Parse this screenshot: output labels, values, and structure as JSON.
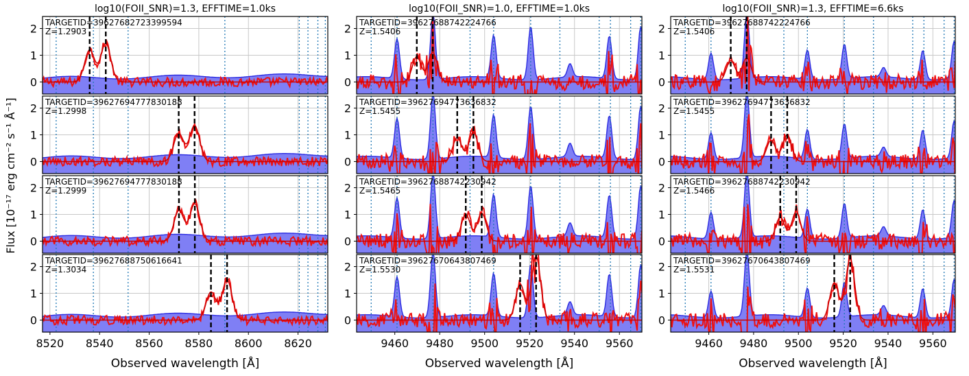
{
  "figure": {
    "ylabel": "Flux [10⁻¹⁷ erg cm⁻² s⁻¹ Å⁻¹]",
    "xlabel": "Observed wavelength [Å]",
    "colors": {
      "model": "#cc0000",
      "data": "#ee1111",
      "sky_fill": "#7f7ff5",
      "sky_line": "#2a2ae0",
      "skyline_marker": "#1f77b4",
      "oii_marker": "#000000",
      "grid": "#c8c8c8"
    }
  },
  "chart_data": [
    {
      "type": "line",
      "title": "log10(FOII_SNR)=1.3, EFFTIME=1.0ks",
      "xlabel": "Observed wavelength [Å]",
      "xlim": [
        8517,
        8632
      ],
      "xticks": [
        8520,
        8540,
        8560,
        8580,
        8600,
        8620
      ],
      "sky_lines": [
        8522.5,
        8537.5,
        8551.5,
        8590.5,
        8620.5,
        8624,
        8628,
        8631
      ],
      "ylim": [
        -0.45,
        2.45
      ],
      "yticks": [
        0,
        1,
        2
      ],
      "panels": [
        {
          "targetid": "TARGETID=39627682723399594",
          "z": "Z=1.2903",
          "oii_lines": [
            8536.0,
            8542.5
          ],
          "peaks": [
            [
              8536.0,
              1.2
            ],
            [
              8542.5,
              1.45
            ]
          ]
        },
        {
          "targetid": "TARGETID=39627694777830188",
          "z": "Z=1.2998",
          "oii_lines": [
            8571.9,
            8578.3
          ],
          "peaks": [
            [
              8571.9,
              1.05
            ],
            [
              8578.3,
              1.35
            ]
          ]
        },
        {
          "targetid": "TARGETID=39627694777830188",
          "z": "Z=1.2999",
          "oii_lines": [
            8572.0,
            8578.4
          ],
          "peaks": [
            [
              8572.0,
              1.15
            ],
            [
              8578.4,
              1.4
            ]
          ]
        },
        {
          "targetid": "TARGETID=39627688750616641",
          "z": "Z=1.3034",
          "oii_lines": [
            8584.9,
            8591.4
          ],
          "peaks": [
            [
              8584.9,
              1.05
            ],
            [
              8591.4,
              1.5
            ]
          ]
        }
      ]
    },
    {
      "type": "line",
      "title": "log10(FOII_SNR)=1.0, EFFTIME=1.0ks",
      "xlabel": "Observed wavelength [Å]",
      "xlim": [
        9443,
        9570
      ],
      "xticks": [
        9460,
        9480,
        9500,
        9520,
        9540,
        9560
      ],
      "sky_lines": [
        9449.5,
        9461,
        9477,
        9493.5,
        9504,
        9520.5,
        9533.5,
        9551,
        9556,
        9565,
        9569.5
      ],
      "sky_emission": [
        [
          9461,
          1.5
        ],
        [
          9477,
          2.45
        ],
        [
          9504,
          1.6
        ],
        [
          9520.5,
          2.0
        ],
        [
          9538,
          0.5
        ],
        [
          9555.5,
          1.6
        ],
        [
          9569.5,
          2.0
        ]
      ],
      "ylim": [
        -0.45,
        2.45
      ],
      "yticks": [
        0,
        1,
        2
      ],
      "panels": [
        {
          "targetid": "TARGETID=39627688742224766",
          "z": "Z=1.5406",
          "oii_lines": [
            9469.8,
            9476.9
          ],
          "peaks": [
            [
              9469.8,
              0.95
            ],
            [
              9476.9,
              1.1
            ]
          ]
        },
        {
          "targetid": "TARGETID=39627694773636832",
          "z": "Z=1.5455",
          "oii_lines": [
            9487.8,
            9495.0
          ],
          "peaks": [
            [
              9487.8,
              0.9
            ],
            [
              9495.0,
              1.1
            ]
          ]
        },
        {
          "targetid": "TARGETID=39627688742230942",
          "z": "Z=1.5465",
          "oii_lines": [
            9491.6,
            9498.7
          ],
          "peaks": [
            [
              9491.6,
              1.0
            ],
            [
              9498.7,
              1.05
            ]
          ]
        },
        {
          "targetid": "TARGETID=39627670643807469",
          "z": "Z=1.5530",
          "oii_lines": [
            9515.8,
            9522.9
          ],
          "peaks": [
            [
              9515.8,
              1.35
            ],
            [
              9522.9,
              2.4
            ]
          ]
        }
      ]
    },
    {
      "type": "line",
      "title": "log10(FOII_SNR)=1.3, EFFTIME=6.6ks",
      "xlabel": "Observed wavelength [Å]",
      "xlim": [
        9443,
        9570
      ],
      "xticks": [
        9460,
        9480,
        9500,
        9520,
        9540,
        9560
      ],
      "sky_lines": [
        9449.5,
        9461,
        9477,
        9493.5,
        9504,
        9520.5,
        9533.5,
        9551,
        9556,
        9565,
        9569.5
      ],
      "sky_emission": [
        [
          9461,
          1.0
        ],
        [
          9477,
          2.45
        ],
        [
          9504,
          1.1
        ],
        [
          9520.5,
          1.3
        ],
        [
          9538,
          0.35
        ],
        [
          9555.5,
          1.1
        ],
        [
          9569.5,
          1.4
        ]
      ],
      "ylim": [
        -0.45,
        2.45
      ],
      "yticks": [
        0,
        1,
        2
      ],
      "panels": [
        {
          "targetid": "TARGETID=39627688742224766",
          "z": "Z=1.5406",
          "oii_lines": [
            9469.8,
            9476.9
          ],
          "peaks": [
            [
              9469.8,
              0.8
            ],
            [
              9476.9,
              0.9
            ]
          ]
        },
        {
          "targetid": "TARGETID=39627694773636832",
          "z": "Z=1.5455",
          "oii_lines": [
            9487.8,
            9495.0
          ],
          "peaks": [
            [
              9487.8,
              0.8
            ],
            [
              9495.0,
              1.0
            ]
          ]
        },
        {
          "targetid": "TARGETID=39627688742230942",
          "z": "Z=1.5466",
          "oii_lines": [
            9491.9,
            9499.0
          ],
          "peaks": [
            [
              9491.9,
              0.9
            ],
            [
              9499.0,
              1.1
            ]
          ]
        },
        {
          "targetid": "TARGETID=39627670643807469",
          "z": "Z=1.5531",
          "oii_lines": [
            9516.0,
            9523.1
          ],
          "peaks": [
            [
              9516.0,
              1.4
            ],
            [
              9523.1,
              2.3
            ]
          ]
        }
      ]
    }
  ]
}
